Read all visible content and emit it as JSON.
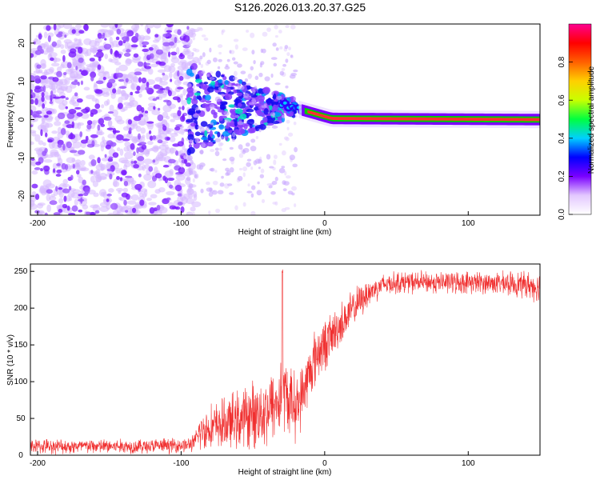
{
  "title": "S126.2026.013.20.37.G25",
  "colors": {
    "line": "#f03030",
    "ridge": "#00ff40",
    "axis": "#000000",
    "background": "#ffffff"
  },
  "chart_data": [
    {
      "type": "heatmap",
      "title": "S126.2026.013.20.37.G25",
      "xlabel": "Height of straight line (km)",
      "ylabel": "Frequency (Hz)",
      "xlim": [
        -205,
        150
      ],
      "ylim": [
        -25,
        25
      ],
      "x_ticks": [
        -200,
        -100,
        0,
        100
      ],
      "y_ticks": [
        -20,
        -10,
        0,
        10,
        20
      ],
      "ridge": {
        "x_start": -30,
        "x_end": 150,
        "freq_start": 4,
        "freq_end": 0
      },
      "noise_region": {
        "x_start": -205,
        "x_end": -95
      },
      "transition_region": {
        "x_start": -95,
        "x_end": -20
      }
    },
    {
      "type": "colorbar",
      "label": "Normalized spectral amplitude",
      "range": [
        0,
        1
      ],
      "ticks": [
        0.0,
        0.2,
        0.4,
        0.6,
        0.8
      ],
      "tick_labels": [
        "0.0",
        "0.2",
        "0.4",
        "0.6",
        "0.8"
      ],
      "stops": [
        "#ffffff",
        "#e3c8ff",
        "#7a00ff",
        "#0000ff",
        "#00d0ff",
        "#00ff40",
        "#c8ff00",
        "#ffd000",
        "#ff6000",
        "#ff0000",
        "#ff0090"
      ]
    },
    {
      "type": "line",
      "xlabel": "Height of straight line (km)",
      "ylabel": "SNR (10 * v/v)",
      "xlim": [
        -205,
        150
      ],
      "ylim": [
        0,
        260
      ],
      "x_ticks": [
        -200,
        -100,
        0,
        100
      ],
      "y_ticks": [
        0,
        50,
        100,
        150,
        200,
        250
      ],
      "series": [
        {
          "name": "SNR",
          "x": [
            -205,
            -190,
            -170,
            -150,
            -130,
            -110,
            -95,
            -90,
            -88,
            -80,
            -70,
            -60,
            -50,
            -40,
            -34,
            -30,
            -29.5,
            -29,
            -27,
            -20,
            -15,
            -10,
            -5,
            0,
            10,
            20,
            30,
            40,
            50,
            70,
            100,
            120,
            140,
            150
          ],
          "values": [
            12,
            12,
            12,
            12,
            12,
            13,
            14,
            18,
            30,
            38,
            42,
            48,
            55,
            62,
            70,
            80,
            250,
            90,
            80,
            65,
            85,
            115,
            140,
            150,
            175,
            200,
            220,
            232,
            235,
            235,
            235,
            234,
            232,
            228
          ],
          "spread": [
            10,
            10,
            10,
            10,
            10,
            10,
            10,
            12,
            25,
            30,
            35,
            40,
            45,
            50,
            50,
            55,
            0,
            50,
            50,
            45,
            40,
            40,
            40,
            35,
            30,
            25,
            20,
            15,
            15,
            15,
            15,
            15,
            18,
            20
          ]
        }
      ]
    }
  ]
}
